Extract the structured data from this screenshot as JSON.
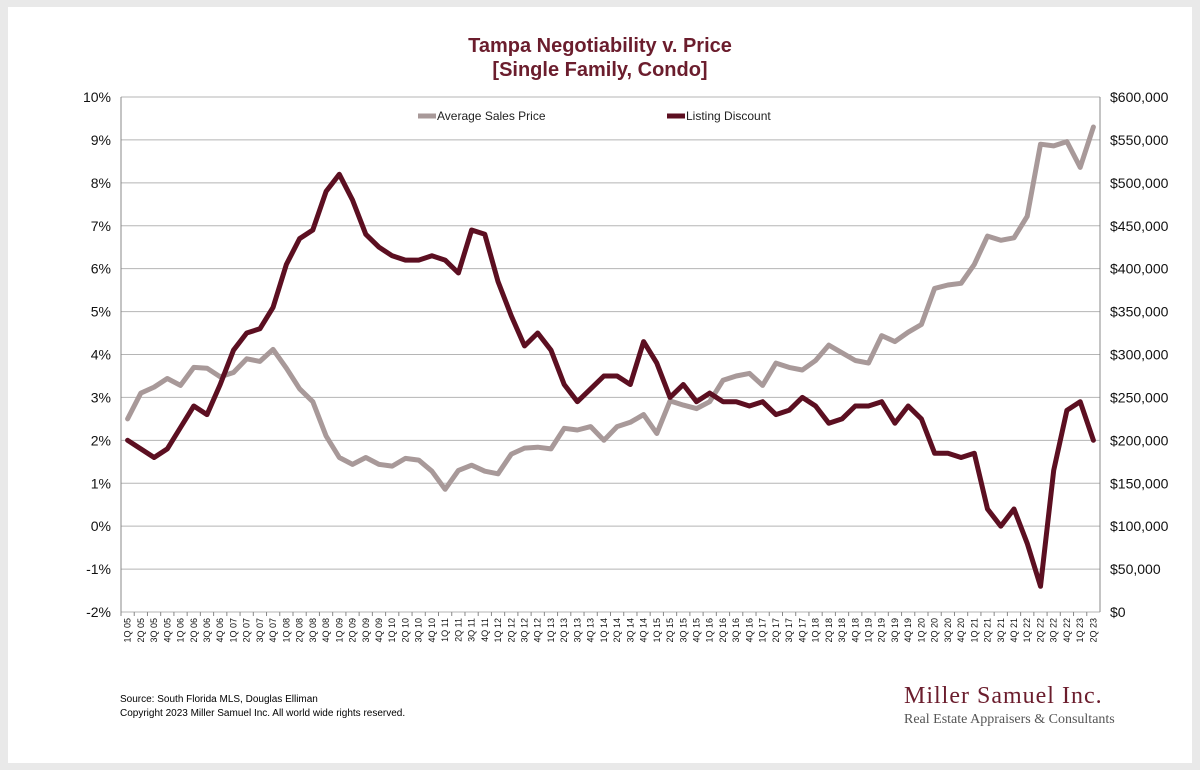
{
  "chart_data": {
    "type": "line",
    "title": "Tampa Negotiability v. Price",
    "subtitle": "[Single Family, Condo]",
    "xlabel": "",
    "ylabel_left": "",
    "ylabel_right": "",
    "legend_position": "top-center",
    "grid": true,
    "y_left": {
      "min": -2,
      "max": 10,
      "step": 1,
      "format": "percent"
    },
    "y_right": {
      "min": 0,
      "max": 600000,
      "step": 50000,
      "format": "currency"
    },
    "left_ticks": [
      "10%",
      "9%",
      "8%",
      "7%",
      "6%",
      "5%",
      "4%",
      "3%",
      "2%",
      "1%",
      "0%",
      "-1%",
      "-2%"
    ],
    "right_ticks": [
      "$600,000",
      "$550,000",
      "$500,000",
      "$450,000",
      "$400,000",
      "$350,000",
      "$300,000",
      "$250,000",
      "$200,000",
      "$150,000",
      "$100,000",
      "$50,000",
      "$0"
    ],
    "x": [
      "1Q 05",
      "2Q 05",
      "3Q 05",
      "4Q 05",
      "1Q 06",
      "2Q 06",
      "3Q 06",
      "4Q 06",
      "1Q 07",
      "2Q 07",
      "3Q 07",
      "4Q 07",
      "1Q 08",
      "2Q 08",
      "3Q 08",
      "4Q 08",
      "1Q 09",
      "2Q 09",
      "3Q 09",
      "4Q 09",
      "1Q 10",
      "2Q 10",
      "3Q 10",
      "4Q 10",
      "1Q 11",
      "2Q 11",
      "3Q 11",
      "4Q 11",
      "1Q 12",
      "2Q 12",
      "3Q 12",
      "4Q 12",
      "1Q 13",
      "2Q 13",
      "3Q 13",
      "4Q 13",
      "1Q 14",
      "2Q 14",
      "3Q 14",
      "4Q 14",
      "1Q 15",
      "2Q 15",
      "3Q 15",
      "4Q 15",
      "1Q 16",
      "2Q 16",
      "3Q 16",
      "4Q 16",
      "1Q 17",
      "2Q 17",
      "3Q 17",
      "4Q 17",
      "1Q 18",
      "2Q 18",
      "3Q 18",
      "4Q 18",
      "1Q 19",
      "2Q 19",
      "3Q 19",
      "4Q 19",
      "1Q 20",
      "2Q 20",
      "3Q 20",
      "4Q 20",
      "1Q 21",
      "2Q 21",
      "3Q 21",
      "4Q 21",
      "1Q 22",
      "2Q 22",
      "3Q 22",
      "4Q 22",
      "1Q 23",
      "2Q 23"
    ],
    "series": [
      {
        "name": "Average Sales Price",
        "axis": "right",
        "color": "#a89999",
        "values": [
          225000,
          255000,
          262000,
          272000,
          264000,
          285000,
          284000,
          274000,
          279000,
          295000,
          292000,
          306000,
          284000,
          260000,
          245000,
          205000,
          180000,
          172000,
          180000,
          172000,
          170000,
          179000,
          177000,
          164000,
          143000,
          165000,
          171000,
          164000,
          161000,
          184000,
          191000,
          192000,
          190000,
          214000,
          212000,
          216000,
          200000,
          216000,
          221000,
          230000,
          208000,
          246000,
          241000,
          237000,
          245000,
          270000,
          275000,
          278000,
          264000,
          290000,
          285000,
          282000,
          293000,
          311000,
          302000,
          293000,
          290000,
          322000,
          315000,
          326000,
          335000,
          377000,
          381000,
          383000,
          405000,
          438000,
          433000,
          436000,
          461000,
          545000,
          543000,
          548000,
          518000,
          565000
        ]
      },
      {
        "name": "Listing Discount",
        "axis": "left",
        "color": "#5c0f21",
        "values": [
          2.0,
          1.8,
          1.6,
          1.8,
          2.3,
          2.8,
          2.6,
          3.3,
          4.1,
          4.5,
          4.6,
          5.1,
          6.1,
          6.7,
          6.9,
          7.8,
          8.2,
          7.6,
          6.8,
          6.5,
          6.3,
          6.2,
          6.2,
          6.3,
          6.2,
          5.9,
          6.9,
          6.8,
          5.7,
          4.9,
          4.2,
          4.5,
          4.1,
          3.3,
          2.9,
          3.2,
          3.5,
          3.5,
          3.3,
          4.3,
          3.8,
          3.0,
          3.3,
          2.9,
          3.1,
          2.9,
          2.9,
          2.8,
          2.9,
          2.6,
          2.7,
          3.0,
          2.8,
          2.4,
          2.5,
          2.8,
          2.8,
          2.9,
          2.4,
          2.8,
          2.5,
          1.7,
          1.7,
          1.6,
          1.7,
          0.4,
          0.0,
          0.4,
          -0.4,
          -1.4,
          1.3,
          2.7,
          2.9,
          2.0
        ]
      }
    ]
  },
  "footer": {
    "source": "Source: South Florida MLS, Douglas Elliman",
    "copyright": "Copyright 2023 Miller Samuel Inc.  All world wide rights reserved."
  },
  "brand": {
    "name": "Miller Samuel Inc.",
    "tagline": "Real Estate Appraisers & Consultants"
  }
}
